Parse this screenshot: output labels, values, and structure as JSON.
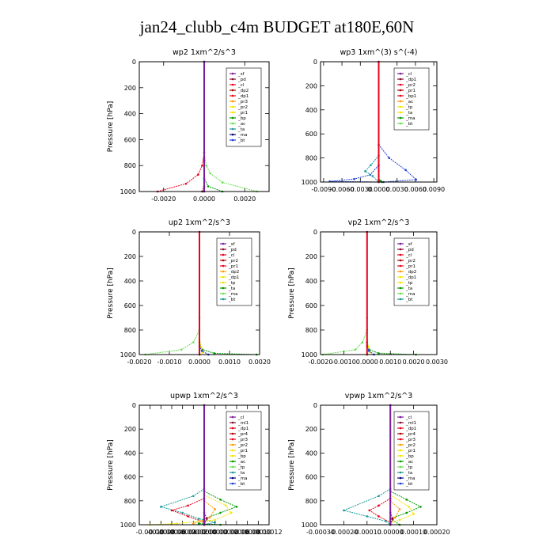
{
  "figure": {
    "title": "jan24_clubb_c4m  BUDGET at180E,60N"
  },
  "colors": {
    "red": "#e8001c",
    "darkred": "#b30000",
    "purple": "#7a1a9c",
    "maroon": "#8b0a2e",
    "orange": "#ff9900",
    "yellow": "#f2e600",
    "green": "#009900",
    "ltgreen": "#66e04d",
    "teal": "#1a9a9a",
    "blue": "#1f3fd6",
    "navy": "#000080",
    "cyan": "#33cccc",
    "ltcyan": "#44dddd"
  },
  "chart_data": [
    {
      "type": "line",
      "title": "wp2   1xm^2/s^3",
      "ylabel": "Pressure  [hPa]",
      "xlabel": "",
      "xlim": [
        -0.0032,
        0.0032
      ],
      "ylim": [
        1000,
        0
      ],
      "xticks": [
        "-0.0020",
        "0.0000",
        "0.0020"
      ],
      "xtick_values": [
        -0.002,
        0.0,
        0.002
      ],
      "yticks": [
        "0",
        "200",
        "400",
        "600",
        "800",
        "1000"
      ],
      "legend_position": "top-right",
      "legend": [
        "_sf",
        "_pd",
        "_cl",
        "_dp2",
        "_dp1",
        "_pr3",
        "_pr2",
        "_pr1",
        "_bp",
        "_ac",
        "_ta",
        "_ma",
        "_bt"
      ],
      "series": [
        {
          "name": "_dp1",
          "color": "red",
          "values": [
            [
              -0.0023,
              1000
            ],
            [
              -0.0009,
              940
            ],
            [
              -0.0003,
              870
            ],
            [
              -0.0001,
              800
            ],
            [
              0,
              700
            ],
            [
              0,
              0
            ]
          ]
        },
        {
          "name": "_pr1",
          "color": "ltgreen",
          "values": [
            [
              0.0026,
              1000
            ],
            [
              0.0009,
              930
            ],
            [
              0.0003,
              860
            ],
            [
              0.0001,
              800
            ],
            [
              0,
              700
            ],
            [
              0,
              0
            ]
          ]
        },
        {
          "name": "_dp2",
          "color": "green",
          "values": [
            [
              0.0009,
              1000
            ],
            [
              0.0002,
              960
            ],
            [
              0,
              900
            ],
            [
              0,
              0
            ]
          ]
        },
        {
          "name": "_pd",
          "color": "maroon",
          "values": [
            [
              -0.0001,
              1000
            ],
            [
              0,
              960
            ],
            [
              0,
              0
            ]
          ]
        },
        {
          "name": "_bt",
          "color": "purple",
          "values": [
            [
              0,
              1000
            ],
            [
              0,
              0
            ]
          ]
        }
      ]
    },
    {
      "type": "line",
      "title": "wp3   1xm^(3) s^(-4)",
      "ylabel": "",
      "xlabel": "",
      "xlim": [
        -0.0095,
        0.0095
      ],
      "ylim": [
        1000,
        0
      ],
      "xticks": [
        "-0.0090",
        "-0.0060",
        "-0.0030",
        "0.0000",
        "0.0030",
        "0.0060",
        "0.0090"
      ],
      "xtick_values": [
        -0.009,
        -0.006,
        -0.003,
        0.0,
        0.003,
        0.006,
        0.009
      ],
      "yticks": [
        "0",
        "200",
        "400",
        "600",
        "800",
        "1000"
      ],
      "legend_position": "top-right",
      "legend": [
        "_cl",
        "_dp1",
        "_pr2",
        "_pr1",
        "_bp1",
        "_ac",
        "_tp",
        "_ta",
        "_ma",
        "_bt"
      ],
      "series": [
        {
          "name": "_tp",
          "color": "blue",
          "values": [
            [
              0,
              690
            ],
            [
              0.0017,
              800
            ],
            [
              0.0044,
              900
            ],
            [
              0.0061,
              980
            ],
            [
              0.0008,
              1000
            ],
            [
              -0.008,
              995
            ],
            [
              -0.004,
              975
            ],
            [
              -0.0014,
              940
            ],
            [
              0,
              860
            ],
            [
              0,
              0
            ]
          ]
        },
        {
          "name": "_ac",
          "color": "teal",
          "values": [
            [
              0,
              780
            ],
            [
              -0.0013,
              860
            ],
            [
              -0.0022,
              910
            ],
            [
              -0.001,
              950
            ],
            [
              0,
              1000
            ]
          ]
        },
        {
          "name": "_ta",
          "color": "green",
          "values": [
            [
              0.0005,
              1000
            ],
            [
              0.0003,
              990
            ],
            [
              0,
              980
            ]
          ]
        },
        {
          "name": "_cl",
          "color": "red",
          "values": [
            [
              0,
              1000
            ],
            [
              0,
              0
            ]
          ]
        }
      ]
    },
    {
      "type": "line",
      "title": "up2   1xm^2/s^3",
      "ylabel": "Pressure  [hPa]",
      "xlabel": "",
      "xlim": [
        -0.002,
        0.002
      ],
      "ylim": [
        1000,
        0
      ],
      "xticks": [
        "-0.0020",
        "-0.0010",
        "0.0000",
        "0.0010",
        "0.0020"
      ],
      "xtick_values": [
        -0.002,
        -0.001,
        0.0,
        0.001,
        0.002
      ],
      "yticks": [
        "0",
        "200",
        "400",
        "600",
        "800",
        "1000"
      ],
      "legend_position": "top-right",
      "legend": [
        "_sf",
        "_pd",
        "_cl",
        "_pr2",
        "_pr1",
        "_dp2",
        "_dp1",
        "_tp",
        "_ta",
        "_ma",
        "_bt"
      ],
      "series": [
        {
          "name": "_dp1",
          "color": "ltgreen",
          "values": [
            [
              -0.0018,
              1000
            ],
            [
              -0.0006,
              960
            ],
            [
              -0.0002,
              900
            ],
            [
              0,
              800
            ],
            [
              0,
              700
            ]
          ]
        },
        {
          "name": "_dp2",
          "color": "green",
          "values": [
            [
              0.0019,
              1000
            ],
            [
              0.0005,
              990
            ],
            [
              0.0001,
              960
            ],
            [
              0,
              900
            ]
          ]
        },
        {
          "name": "_pr1",
          "color": "yellow",
          "values": [
            [
              0,
              1000
            ],
            [
              0.00012,
              980
            ],
            [
              6e-05,
              940
            ],
            [
              0,
              880
            ]
          ]
        },
        {
          "name": "_tp",
          "color": "blue",
          "values": [
            [
              0.0003,
              1000
            ],
            [
              8e-05,
              970
            ],
            [
              0,
              930
            ]
          ]
        },
        {
          "name": "_cl",
          "color": "red",
          "values": [
            [
              0,
              1000
            ],
            [
              0,
              0
            ]
          ]
        }
      ]
    },
    {
      "type": "line",
      "title": "vp2   1xm^2/s^3",
      "ylabel": "Pressure  [hPa]",
      "xlabel": "",
      "xlim": [
        -0.002,
        0.003
      ],
      "ylim": [
        1000,
        0
      ],
      "xticks": [
        "-0.0020",
        "-0.0010",
        "0.0000",
        "0.0010",
        "0.0020",
        "0.0030"
      ],
      "xtick_values": [
        -0.002,
        -0.001,
        0.0,
        0.001,
        0.002,
        0.003
      ],
      "yticks": [
        "0",
        "200",
        "400",
        "600",
        "800",
        "1000"
      ],
      "legend_position": "top-right",
      "legend": [
        "_sf",
        "_pd",
        "_cl",
        "_pr2",
        "_pr1",
        "_dp2",
        "_dp1",
        "_tp",
        "_ta",
        "_ma",
        "_bt"
      ],
      "series": [
        {
          "name": "_dp1",
          "color": "ltgreen",
          "values": [
            [
              -0.0019,
              1000
            ],
            [
              -0.0005,
              960
            ],
            [
              -0.0002,
              900
            ],
            [
              0,
              800
            ],
            [
              0,
              700
            ]
          ]
        },
        {
          "name": "_dp2",
          "color": "green",
          "values": [
            [
              0.0021,
              1000
            ],
            [
              0.0005,
              990
            ],
            [
              0.0001,
              960
            ],
            [
              0,
              900
            ]
          ]
        },
        {
          "name": "_pr1",
          "color": "yellow",
          "values": [
            [
              0,
              1000
            ],
            [
              0.00012,
              980
            ],
            [
              6e-05,
              940
            ],
            [
              0,
              880
            ]
          ]
        },
        {
          "name": "_tp",
          "color": "blue",
          "values": [
            [
              0.0003,
              1000
            ],
            [
              8e-05,
              970
            ],
            [
              0,
              930
            ]
          ]
        },
        {
          "name": "_cl",
          "color": "red",
          "values": [
            [
              0,
              1000
            ],
            [
              0,
              0
            ]
          ]
        }
      ]
    },
    {
      "type": "line",
      "title": "upwp   1xm^2/s^3",
      "ylabel": "Pressure  [hPa]",
      "xlabel": "",
      "xlim": [
        -0.00012,
        0.00012
      ],
      "ylim": [
        1000,
        0
      ],
      "xticks": [
        "-0.00010",
        "-0.00008",
        "-0.00006",
        "-0.00004",
        "-0.00002",
        "0.00000",
        "0.00002",
        "0.00004",
        "0.00006",
        "0.00008",
        "0.00010",
        "0.00012"
      ],
      "xtick_values": [
        -0.0001,
        -8e-05,
        -6e-05,
        -4e-05,
        -2e-05,
        0.0,
        2e-05,
        4e-05,
        6e-05,
        8e-05,
        0.0001,
        0.00012
      ],
      "yticks": [
        "0",
        "200",
        "400",
        "600",
        "800",
        "1000"
      ],
      "legend_position": "top-right",
      "legend": [
        "_cl",
        "_ml1",
        "_dp1",
        "_pr4",
        "_pr3",
        "_pr2",
        "_pr1",
        "_bp",
        "_ac",
        "_tp",
        "_ta",
        "_ma",
        "_bt"
      ],
      "series": [
        {
          "name": "_tp",
          "color": "teal",
          "values": [
            [
              0,
              700
            ],
            [
              -2e-05,
              760
            ],
            [
              -8e-05,
              850
            ],
            [
              -4e-05,
              900
            ],
            [
              -1e-05,
              950
            ],
            [
              2e-05,
              980
            ],
            [
              0,
              1000
            ]
          ]
        },
        {
          "name": "_pr1",
          "color": "green",
          "values": [
            [
              0,
              720
            ],
            [
              3e-05,
              790
            ],
            [
              6e-05,
              850
            ],
            [
              3e-05,
              900
            ],
            [
              0,
              950
            ],
            [
              -1e-05,
              990
            ],
            [
              3e-05,
              1000
            ]
          ]
        },
        {
          "name": "_dp1",
          "color": "red",
          "values": [
            [
              0,
              780
            ],
            [
              -3e-05,
              840
            ],
            [
              -6e-05,
              880
            ],
            [
              -3e-05,
              930
            ],
            [
              0,
              980
            ]
          ]
        },
        {
          "name": "_pr2",
          "color": "yellow",
          "values": [
            [
              0,
              750
            ],
            [
              4e-05,
              840
            ],
            [
              5e-05,
              900
            ],
            [
              2e-05,
              960
            ],
            [
              -5e-05,
              990
            ],
            [
              -0.0001,
              1000
            ]
          ]
        },
        {
          "name": "_pr3",
          "color": "orange",
          "values": [
            [
              0,
              800
            ],
            [
              2e-05,
              870
            ],
            [
              1e-05,
              940
            ],
            [
              -2e-05,
              990
            ]
          ]
        },
        {
          "name": "_ml1",
          "color": "maroon",
          "values": [
            [
              0,
              1000
            ],
            [
              5e-06,
              950
            ],
            [
              0,
              900
            ],
            [
              0,
              0
            ]
          ]
        },
        {
          "name": "_cl",
          "color": "purple",
          "values": [
            [
              0,
              1000
            ],
            [
              0,
              0
            ]
          ]
        }
      ]
    },
    {
      "type": "line",
      "title": "vpwp   1xm^2/s^3",
      "ylabel": "Pressure  [hPa]",
      "xlabel": "",
      "xlim": [
        -0.0003,
        0.0002
      ],
      "ylim": [
        1000,
        0
      ],
      "xticks": [
        "-0.00030",
        "-0.00020",
        "-0.00010",
        "0.00000",
        "0.00010",
        "0.00020"
      ],
      "xtick_values": [
        -0.0003,
        -0.0002,
        -0.0001,
        0.0,
        0.0001,
        0.0002
      ],
      "yticks": [
        "0",
        "200",
        "400",
        "600",
        "800",
        "1000"
      ],
      "legend_position": "top-right",
      "legend": [
        "_cl",
        "_ml1",
        "_dp1",
        "_pr4",
        "_pr3",
        "_pr2",
        "_pr1",
        "_bp",
        "_ac",
        "_tp",
        "_ta",
        "_ma",
        "_bt"
      ],
      "series": [
        {
          "name": "_tp",
          "color": "teal",
          "values": [
            [
              0,
              700
            ],
            [
              -5e-05,
              760
            ],
            [
              -0.0002,
              880
            ],
            [
              -0.0001,
              930
            ],
            [
              -2e-05,
              970
            ],
            [
              0,
              1000
            ]
          ]
        },
        {
          "name": "_pr1",
          "color": "green",
          "values": [
            [
              0,
              720
            ],
            [
              7e-05,
              790
            ],
            [
              0.00013,
              850
            ],
            [
              7e-05,
              900
            ],
            [
              0,
              950
            ],
            [
              4e-05,
              1000
            ]
          ]
        },
        {
          "name": "_dp1",
          "color": "red",
          "values": [
            [
              0,
              780
            ],
            [
              -5e-05,
              840
            ],
            [
              -9e-05,
              880
            ],
            [
              -5e-05,
              930
            ],
            [
              0,
              980
            ]
          ]
        },
        {
          "name": "_pr2",
          "color": "yellow",
          "values": [
            [
              0,
              750
            ],
            [
              8e-05,
              850
            ],
            [
              0.0001,
              910
            ],
            [
              4e-05,
              960
            ],
            [
              0,
              990
            ]
          ]
        },
        {
          "name": "_pr3",
          "color": "orange",
          "values": [
            [
              0,
              800
            ],
            [
              4e-05,
              870
            ],
            [
              2e-05,
              940
            ],
            [
              0,
              990
            ]
          ]
        },
        {
          "name": "_ml1",
          "color": "maroon",
          "values": [
            [
              0,
              1000
            ],
            [
              1e-05,
              950
            ],
            [
              0,
              900
            ],
            [
              0,
              0
            ]
          ]
        },
        {
          "name": "_cl",
          "color": "purple",
          "values": [
            [
              0,
              1000
            ],
            [
              0,
              0
            ]
          ]
        }
      ]
    }
  ]
}
